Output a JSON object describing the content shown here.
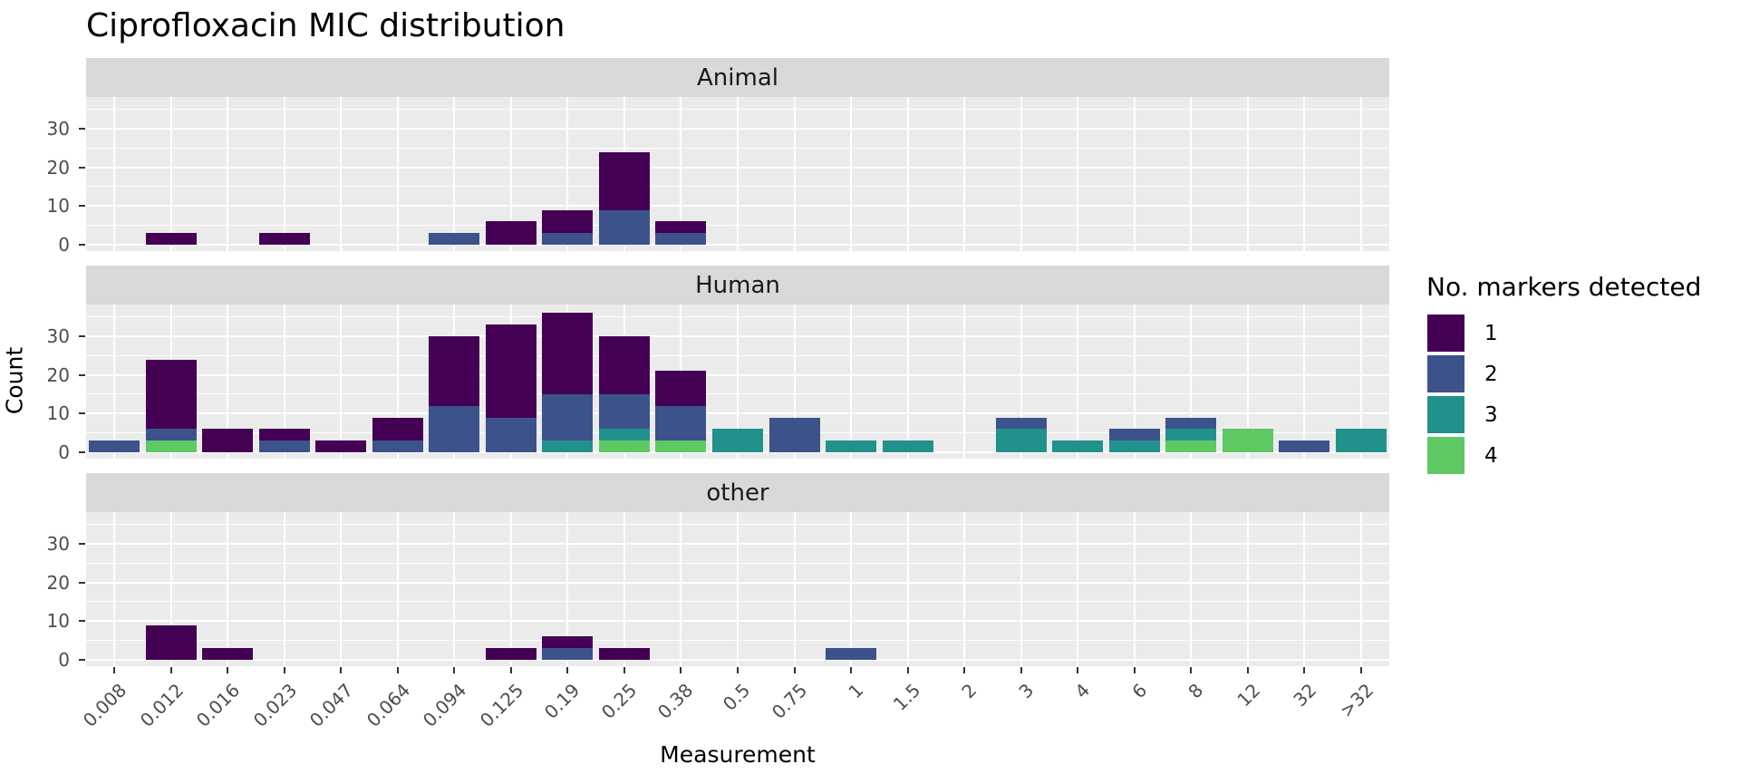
{
  "title": "Ciprofloxacin MIC distribution",
  "axes": {
    "x_label": "Measurement",
    "y_label": "Count",
    "y_tick_labels": [
      "0",
      "10",
      "20",
      "30"
    ]
  },
  "legend": {
    "title": "No. markers detected",
    "items": [
      {
        "label": "1",
        "color": "#440154"
      },
      {
        "label": "2",
        "color": "#3B528B"
      },
      {
        "label": "3",
        "color": "#21918C"
      },
      {
        "label": "4",
        "color": "#5EC962"
      }
    ]
  },
  "colors": {
    "panel_background": "#EBEBEB",
    "strip_background": "#D9D9D9",
    "gridline": "#FFFFFF",
    "tick_mark": "#333333",
    "tick_label": "#4D4D4D",
    "title_text": "#000000",
    "strip_text": "#1A1A1A"
  },
  "chart_data": {
    "type": "bar",
    "stacked": true,
    "title": "Ciprofloxacin MIC distribution",
    "xlabel": "Measurement",
    "ylabel": "Count",
    "ylim": [
      0,
      38
    ],
    "yticks": [
      0,
      10,
      20,
      30
    ],
    "yminor": [
      5,
      15,
      25,
      35
    ],
    "grid": true,
    "legend_title": "No. markers detected",
    "legend_position": "right",
    "categories": [
      "0.008",
      "0.012",
      "0.016",
      "0.023",
      "0.047",
      "0.064",
      "0.094",
      "0.125",
      "0.19",
      "0.25",
      "0.38",
      "0.5",
      "0.75",
      "1",
      "1.5",
      "2",
      "3",
      "4",
      "6",
      "8",
      "12",
      "32",
      ">32"
    ],
    "series_colors": {
      "1": "#440154",
      "2": "#3B528B",
      "3": "#21918C",
      "4": "#5EC962"
    },
    "stack_order_bottom_to_top": [
      "4",
      "3",
      "2",
      "1"
    ],
    "facets": [
      {
        "name": "Animal",
        "series": [
          {
            "name": "1",
            "values": [
              0,
              3,
              0,
              3,
              0,
              0,
              0,
              6,
              6,
              15,
              3,
              0,
              0,
              0,
              0,
              0,
              0,
              0,
              0,
              0,
              0,
              0,
              0
            ]
          },
          {
            "name": "2",
            "values": [
              0,
              0,
              0,
              0,
              0,
              0,
              3,
              0,
              3,
              9,
              3,
              0,
              0,
              0,
              0,
              0,
              0,
              0,
              0,
              0,
              0,
              0,
              0
            ]
          },
          {
            "name": "3",
            "values": [
              0,
              0,
              0,
              0,
              0,
              0,
              0,
              0,
              0,
              0,
              0,
              0,
              0,
              0,
              0,
              0,
              0,
              0,
              0,
              0,
              0,
              0,
              0
            ]
          },
          {
            "name": "4",
            "values": [
              0,
              0,
              0,
              0,
              0,
              0,
              0,
              0,
              0,
              0,
              0,
              0,
              0,
              0,
              0,
              0,
              0,
              0,
              0,
              0,
              0,
              0,
              0
            ]
          }
        ]
      },
      {
        "name": "Human",
        "series": [
          {
            "name": "1",
            "values": [
              0,
              18,
              6,
              3,
              3,
              6,
              18,
              24,
              21,
              15,
              9,
              0,
              0,
              0,
              0,
              0,
              0,
              0,
              0,
              0,
              0,
              0,
              0
            ]
          },
          {
            "name": "2",
            "values": [
              3,
              3,
              0,
              3,
              0,
              3,
              12,
              9,
              12,
              9,
              9,
              0,
              9,
              0,
              0,
              0,
              3,
              0,
              3,
              3,
              0,
              3,
              0
            ]
          },
          {
            "name": "3",
            "values": [
              0,
              0,
              0,
              0,
              0,
              0,
              0,
              0,
              3,
              3,
              0,
              6,
              0,
              3,
              3,
              0,
              6,
              3,
              3,
              3,
              0,
              0,
              6
            ]
          },
          {
            "name": "4",
            "values": [
              0,
              3,
              0,
              0,
              0,
              0,
              0,
              0,
              0,
              3,
              3,
              0,
              0,
              0,
              0,
              0,
              0,
              0,
              0,
              3,
              6,
              0,
              0
            ]
          }
        ]
      },
      {
        "name": "other",
        "series": [
          {
            "name": "1",
            "values": [
              0,
              9,
              3,
              0,
              0,
              0,
              0,
              3,
              3,
              3,
              0,
              0,
              0,
              0,
              0,
              0,
              0,
              0,
              0,
              0,
              0,
              0,
              0
            ]
          },
          {
            "name": "2",
            "values": [
              0,
              0,
              0,
              0,
              0,
              0,
              0,
              0,
              3,
              0,
              0,
              0,
              0,
              3,
              0,
              0,
              0,
              0,
              0,
              0,
              0,
              0,
              0
            ]
          },
          {
            "name": "3",
            "values": [
              0,
              0,
              0,
              0,
              0,
              0,
              0,
              0,
              0,
              0,
              0,
              0,
              0,
              0,
              0,
              0,
              0,
              0,
              0,
              0,
              0,
              0,
              0
            ]
          },
          {
            "name": "4",
            "values": [
              0,
              0,
              0,
              0,
              0,
              0,
              0,
              0,
              0,
              0,
              0,
              0,
              0,
              0,
              0,
              0,
              0,
              0,
              0,
              0,
              0,
              0,
              0
            ]
          }
        ]
      }
    ]
  }
}
